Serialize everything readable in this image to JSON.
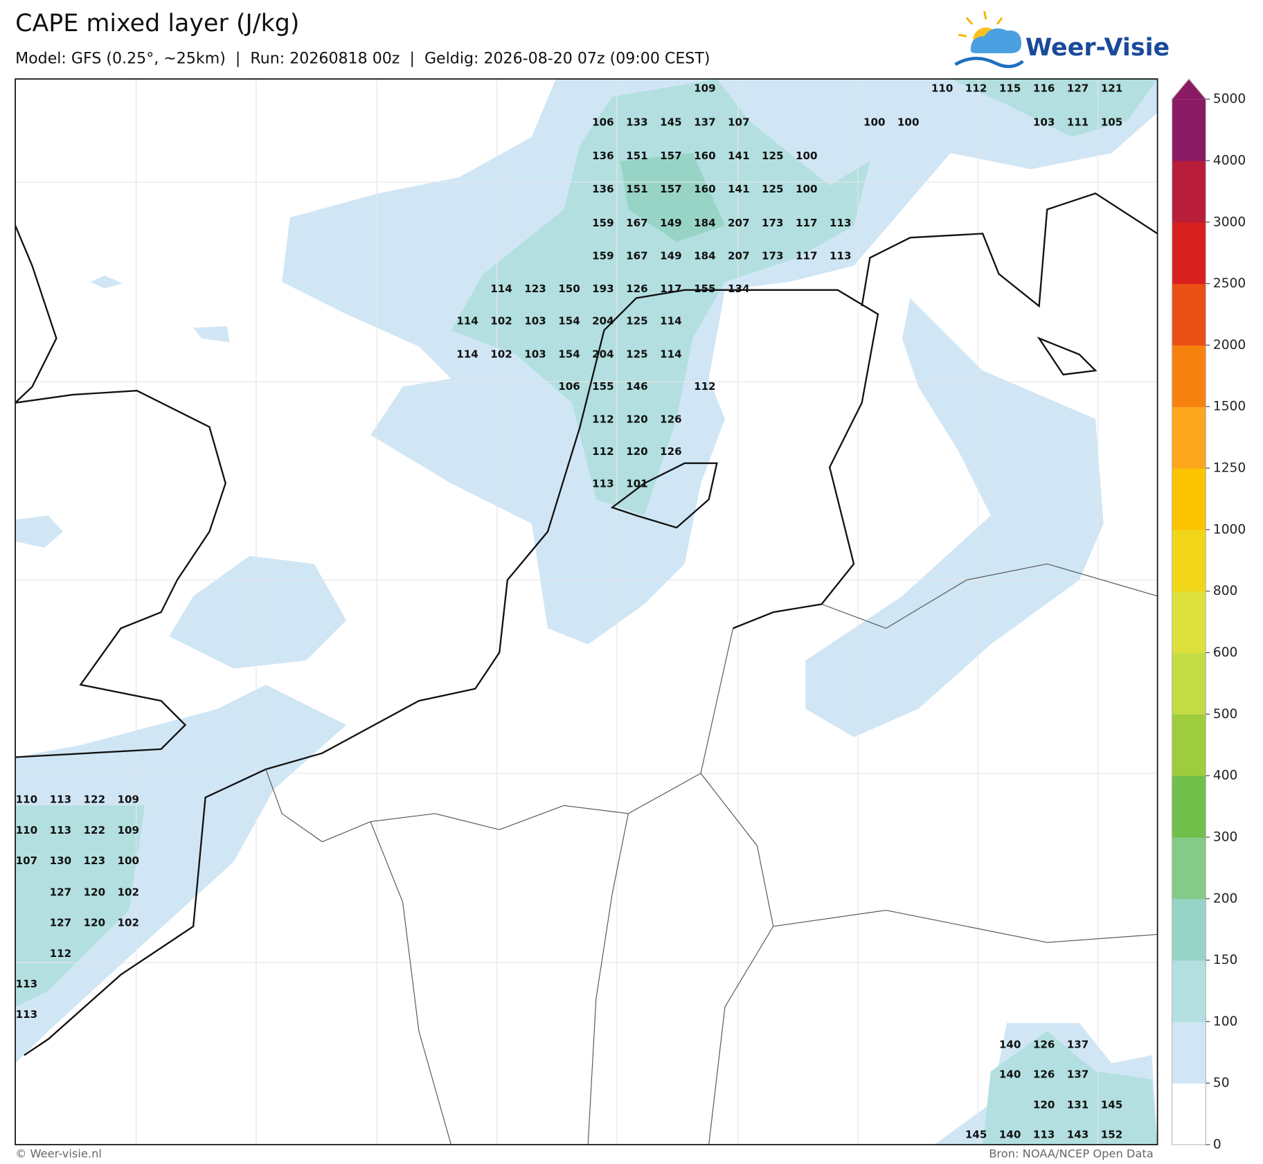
{
  "header": {
    "title": "CAPE mixed layer (J/kg)",
    "subtitle": "Model: GFS (0.25°, ~25km)  |  Run: 20260818 00z  |  Geldig: 2026-08-20 07z (09:00 CEST)"
  },
  "logo": {
    "text": "Weer-Visie"
  },
  "map": {
    "values": [
      [
        109
      ],
      [
        110,
        112,
        115,
        116,
        127,
        121
      ],
      [
        106,
        133,
        145,
        137,
        107
      ],
      [
        100,
        100
      ],
      [
        103,
        111,
        105
      ],
      [
        136,
        151,
        157,
        160,
        141,
        125,
        100
      ],
      [
        136,
        151,
        157,
        160,
        141,
        125,
        100
      ],
      [
        159,
        167,
        149,
        184,
        207,
        173,
        117,
        113
      ],
      [
        159,
        167,
        149,
        184,
        207,
        173,
        117,
        113
      ],
      [
        114,
        123,
        150,
        193,
        126,
        117,
        155,
        134
      ],
      [
        114,
        102,
        103,
        154,
        204,
        125,
        114
      ],
      [
        114,
        102,
        103,
        154,
        204,
        125,
        114
      ],
      [
        106,
        155,
        146
      ],
      [
        112
      ],
      [
        112,
        120,
        126
      ],
      [
        112,
        120,
        126
      ],
      [
        113,
        101
      ],
      [
        110,
        113,
        122,
        109
      ],
      [
        110,
        113,
        122,
        109
      ],
      [
        107,
        130,
        123,
        100
      ],
      [
        127,
        120,
        102
      ],
      [
        127,
        120,
        102
      ],
      [
        112
      ],
      [
        113
      ],
      [
        113
      ],
      [
        140,
        126,
        137
      ],
      [
        140,
        126,
        137
      ],
      [
        120,
        131,
        145
      ],
      [
        145,
        140,
        113,
        143,
        152
      ]
    ]
  },
  "colorbar": {
    "levels": [
      0,
      50,
      100,
      150,
      200,
      300,
      400,
      500,
      600,
      800,
      1000,
      1250,
      1500,
      2000,
      2500,
      3000,
      4000,
      5000
    ],
    "colors": [
      "#ffffff",
      "#d0e6f5",
      "#b3dfe0",
      "#97d4c6",
      "#86ca8a",
      "#6fbf4a",
      "#9fcc3c",
      "#c4dc44",
      "#dce03a",
      "#f2d61a",
      "#fbc400",
      "#fca61c",
      "#f7810f",
      "#ea4f14",
      "#d8201e",
      "#b81d3a",
      "#8a1a64"
    ]
  },
  "footer": {
    "credit": "© Weer-visie.nl",
    "source": "Bron: NOAA/NCEP Open Data"
  }
}
